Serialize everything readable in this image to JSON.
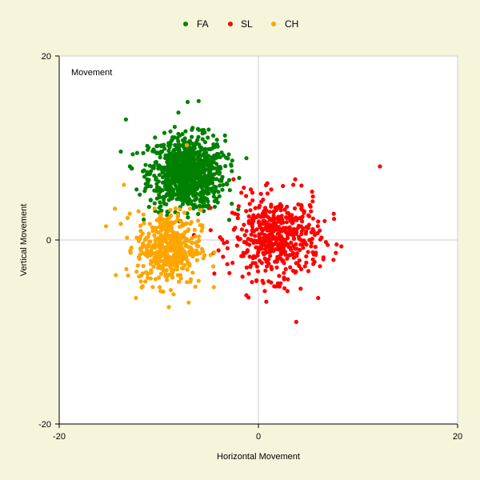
{
  "chart_data": {
    "type": "scatter",
    "title": "",
    "annotation": "Movement",
    "xlabel": "Horizontal Movement",
    "ylabel": "Vertical Movement",
    "xlim": [
      -20,
      20
    ],
    "ylim": [
      -20,
      20
    ],
    "x_ticks": [
      "-20",
      "0",
      "20"
    ],
    "y_ticks": [
      "20",
      "0",
      "-20"
    ],
    "grid": "zero-lines",
    "legend_position": "top-center",
    "background": "#f5f5dc",
    "plot_background": "#ffffff",
    "series": [
      {
        "name": "FA",
        "color": "#008000",
        "cluster": {
          "center": [
            -7.2,
            7.3
          ],
          "spread": [
            1.9,
            2.0
          ],
          "count": 900
        },
        "points": [
          [
            -13.3,
            13.1
          ],
          [
            -7.1,
            15.0
          ],
          [
            -6.0,
            15.1
          ],
          [
            -12.9,
            8.0
          ],
          [
            -3.5,
            9.2
          ],
          [
            -5.0,
            12.0
          ],
          [
            -10.0,
            3.0
          ],
          [
            -4.2,
            4.5
          ]
        ]
      },
      {
        "name": "SL",
        "color": "#ff0000",
        "cluster": {
          "center": [
            1.8,
            0.2
          ],
          "spread": [
            2.2,
            2.2
          ],
          "count": 500
        },
        "points": [
          [
            12.2,
            8.0
          ],
          [
            3.8,
            -8.9
          ],
          [
            7.6,
            2.3
          ],
          [
            6.0,
            -6.3
          ],
          [
            -2.5,
            6.6
          ],
          [
            -4.8,
            3.5
          ],
          [
            -4.5,
            -1.4
          ],
          [
            3.5,
            6.0
          ]
        ]
      },
      {
        "name": "CH",
        "color": "#ffa500",
        "cluster": {
          "center": [
            -9.0,
            -0.8
          ],
          "spread": [
            1.6,
            2.0
          ],
          "count": 450
        },
        "points": [
          [
            -15.3,
            1.5
          ],
          [
            -9.0,
            -7.3
          ],
          [
            -12.3,
            -6.3
          ],
          [
            -7.2,
            10.3
          ],
          [
            -13.5,
            6.0
          ],
          [
            -11.8,
            -4.5
          ],
          [
            -7.0,
            -6.8
          ],
          [
            -5.7,
            1.0
          ]
        ]
      }
    ]
  }
}
